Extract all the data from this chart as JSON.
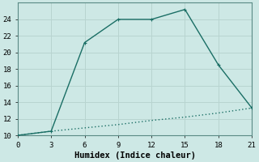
{
  "xlabel": "Humidex (Indice chaleur)",
  "background_color": "#cde8e5",
  "grid_color": "#b8d4d0",
  "line_color": "#1a6e65",
  "line1_x": [
    0,
    3,
    6,
    9,
    12,
    15,
    18,
    21
  ],
  "line1_y": [
    10,
    10.5,
    21.2,
    24.0,
    24.0,
    25.2,
    18.5,
    13.3
  ],
  "line2_x": [
    0,
    3,
    6,
    9,
    12,
    15,
    18,
    21
  ],
  "line2_y": [
    10,
    10.5,
    10.9,
    11.3,
    11.8,
    12.2,
    12.7,
    13.3
  ],
  "xlim": [
    0,
    21
  ],
  "ylim": [
    10,
    26
  ],
  "xticks": [
    0,
    3,
    6,
    9,
    12,
    15,
    18,
    21
  ],
  "yticks": [
    10,
    12,
    14,
    16,
    18,
    20,
    22,
    24
  ],
  "markersize": 3.5,
  "linewidth": 1.0,
  "tick_fontsize": 6.5,
  "xlabel_fontsize": 7.5,
  "font_family": "monospace"
}
